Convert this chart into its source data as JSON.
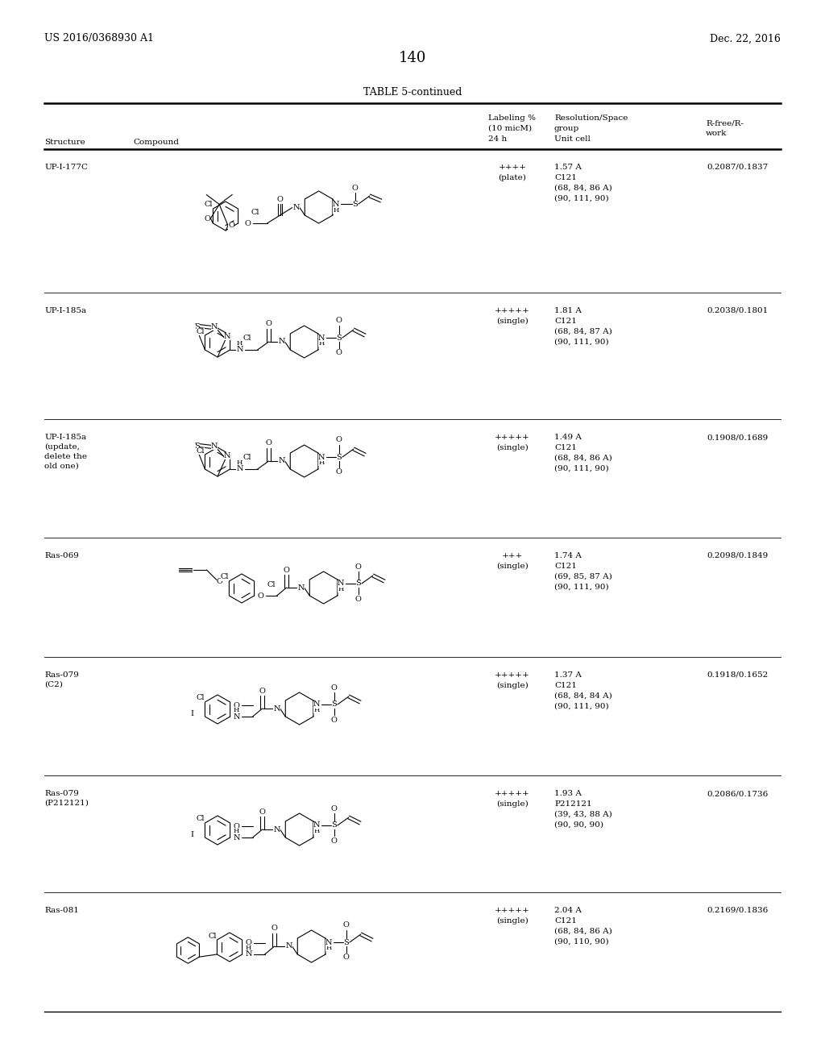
{
  "page_number": "140",
  "patent_number": "US 2016/0368930 A1",
  "patent_date": "Dec. 22, 2016",
  "table_title": "TABLE 5-continued",
  "col_headers": {
    "structure": "Structure",
    "compound": "Compound",
    "labeling_l1": "Labeling %",
    "labeling_l2": "(10 micM)",
    "labeling_l3": "24 h",
    "resolution_l1": "Resolution/Space",
    "resolution_l2": "group",
    "resolution_l3": "Unit cell",
    "r_l1": "R-free/R-",
    "r_l2": "work"
  },
  "rows": [
    {
      "structure": "UP-I-177C",
      "labeling": "++++\n(plate)",
      "resolution": "1.57 A\nC121\n(68, 84, 86 A)\n(90, 111, 90)",
      "r_value": "0.2087/0.1837"
    },
    {
      "structure": "UP-I-185a",
      "labeling": "+++++\n(single)",
      "resolution": "1.81 A\nC121\n(68, 84, 87 A)\n(90, 111, 90)",
      "r_value": "0.2038/0.1801"
    },
    {
      "structure": "UP-I-185a\n(update,\ndelete the\nold one)",
      "labeling": "+++++\n(single)",
      "resolution": "1.49 A\nC121\n(68, 84, 86 A)\n(90, 111, 90)",
      "r_value": "0.1908/0.1689"
    },
    {
      "structure": "Ras-069",
      "labeling": "+++\n(single)",
      "resolution": "1.74 A\nC121\n(69, 85, 87 A)\n(90, 111, 90)",
      "r_value": "0.2098/0.1849"
    },
    {
      "structure": "Ras-079\n(C2)",
      "labeling": "+++++\n(single)",
      "resolution": "1.37 A\nC121\n(68, 84, 84 A)\n(90, 111, 90)",
      "r_value": "0.1918/0.1652"
    },
    {
      "structure": "Ras-079\n(P212121)",
      "labeling": "+++++\n(single)",
      "resolution": "1.93 A\nP212121\n(39, 43, 88 A)\n(90, 90, 90)",
      "r_value": "0.2086/0.1736"
    },
    {
      "structure": "Ras-081",
      "labeling": "+++++\n(single)",
      "resolution": "2.04 A\nC121\n(68, 84, 86 A)\n(90, 110, 90)",
      "r_value": "0.2169/0.1836"
    }
  ],
  "bg_color": "#ffffff",
  "text_color": "#000000"
}
